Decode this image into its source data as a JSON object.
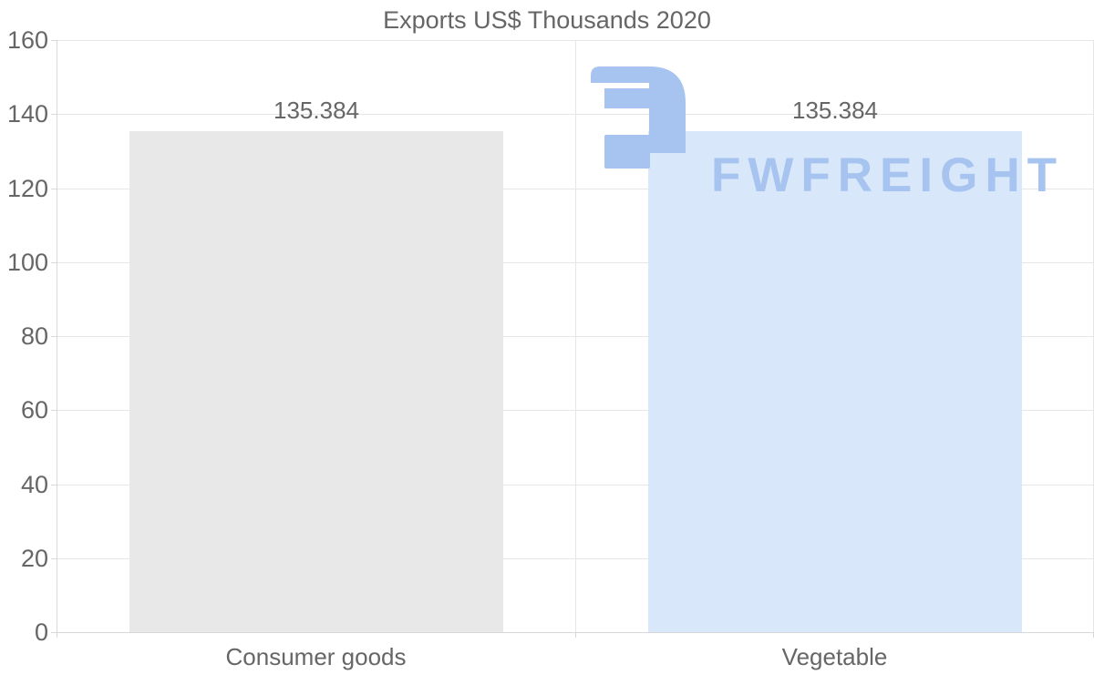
{
  "chart_data": {
    "type": "bar",
    "title": "Exports US$ Thousands 2020",
    "categories": [
      "Consumer goods",
      "Vegetable"
    ],
    "series": [
      {
        "name": "Exports US$ Thousands 2020",
        "values": [
          135.384,
          135.384
        ]
      }
    ],
    "data_labels": [
      "135.384",
      "135.384"
    ],
    "bar_colors": [
      "#e8e8e8",
      "#d8e7f9"
    ],
    "xlabel": "",
    "ylabel": "",
    "ylim": [
      0,
      160
    ],
    "ytick_step": 20,
    "ytick_labels": [
      "0",
      "20",
      "40",
      "60",
      "80",
      "100",
      "120",
      "140",
      "160"
    ],
    "grid": true,
    "legend": "none",
    "styles": {
      "title_color": "#666666",
      "axis_label_color": "#666666",
      "data_label_color": "#666666",
      "gridline_color": "#e6e6e6",
      "axis_line_color": "#d8d8d8",
      "tick_color": "#d8d8d8",
      "background": "#ffffff"
    }
  },
  "watermark": {
    "text": "FWFREIGHT",
    "icon": "fwfreight-logo",
    "color": "#a6c4ef"
  }
}
